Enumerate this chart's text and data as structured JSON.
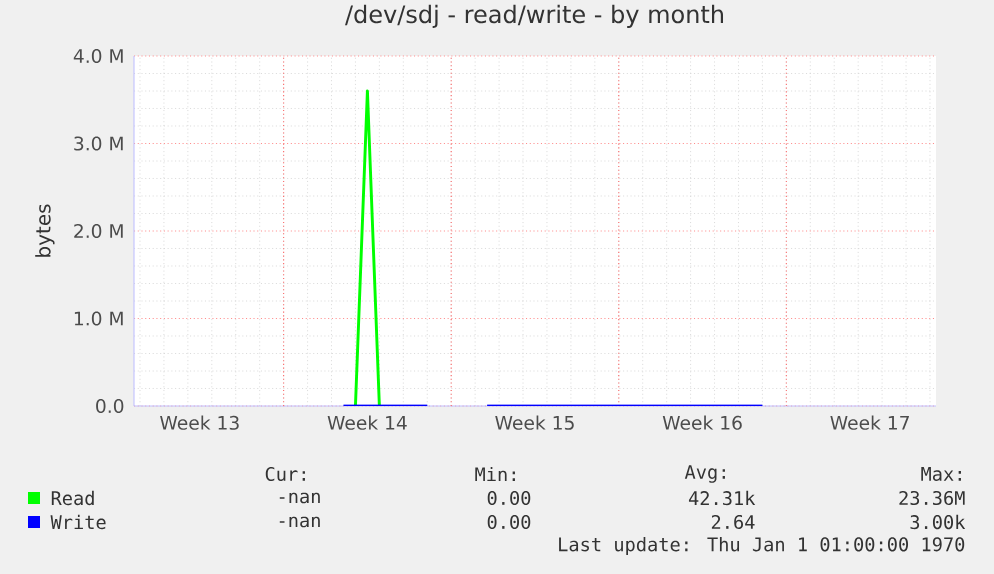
{
  "chart_data": {
    "type": "line",
    "title": "/dev/sdj - read/write - by month",
    "ylabel": "bytes",
    "categories": [
      null,
      null,
      null,
      null,
      null,
      "Week 13",
      null,
      null,
      null,
      null,
      null,
      null,
      null,
      null,
      null,
      null,
      null,
      null,
      null,
      "Week 14",
      null,
      null,
      null,
      null,
      null,
      null,
      null,
      null,
      null,
      null,
      null,
      null,
      null,
      "Week 15",
      null,
      null,
      null,
      null,
      null,
      null,
      null,
      null,
      null,
      null,
      null,
      null,
      null,
      "Week 16",
      null,
      null,
      null,
      null,
      null,
      null,
      null,
      null,
      null,
      null,
      null,
      null,
      null,
      "Week 17",
      null,
      null,
      null,
      null,
      null
    ],
    "ylim": [
      0,
      4000000
    ],
    "yticks": [
      {
        "value": 0,
        "label": "0.0"
      },
      {
        "value": 1000000,
        "label": "1.0 M"
      },
      {
        "value": 2000000,
        "label": "2.0 M"
      },
      {
        "value": 3000000,
        "label": "3.0 M"
      },
      {
        "value": 4000000,
        "label": "4.0 M"
      }
    ],
    "grid": true,
    "legend": "bottom",
    "series": [
      {
        "name": "Read",
        "color": "#00ff00",
        "values": [
          null,
          null,
          null,
          null,
          null,
          null,
          null,
          null,
          null,
          null,
          null,
          null,
          null,
          null,
          null,
          null,
          null,
          null,
          0,
          3600000,
          0,
          null,
          null,
          null,
          null,
          null,
          null,
          null,
          null,
          null,
          null,
          null,
          null,
          null,
          null,
          null,
          null,
          null,
          null,
          null,
          null,
          null,
          null,
          null,
          null,
          null,
          null,
          null,
          null,
          null,
          null,
          null,
          null,
          null,
          null,
          null,
          null,
          null,
          null,
          null,
          null,
          null,
          null,
          null,
          null,
          null,
          null
        ]
      },
      {
        "name": "Write",
        "color": "#0000ff",
        "values": [
          null,
          null,
          null,
          null,
          null,
          null,
          null,
          null,
          null,
          null,
          null,
          null,
          null,
          null,
          null,
          null,
          null,
          0,
          0,
          0,
          0,
          0,
          0,
          0,
          0,
          null,
          null,
          null,
          null,
          0,
          0,
          0,
          0,
          0,
          0,
          0,
          0,
          0,
          0,
          0,
          0,
          0,
          0,
          0,
          0,
          0,
          0,
          0,
          0,
          0,
          0,
          0,
          0,
          null,
          null,
          null,
          null,
          null,
          null,
          null,
          null,
          null,
          null,
          null,
          null,
          null,
          null
        ]
      }
    ],
    "annotations": [
      "Cur:",
      "Min:",
      "Avg:",
      "Max:",
      "-nan",
      "0.00",
      "42.31k",
      "23.36M",
      "-nan",
      "0.00",
      "2.64",
      "3.00k",
      "Last update: Thu Jan  1 01:00:00 1970"
    ]
  }
}
